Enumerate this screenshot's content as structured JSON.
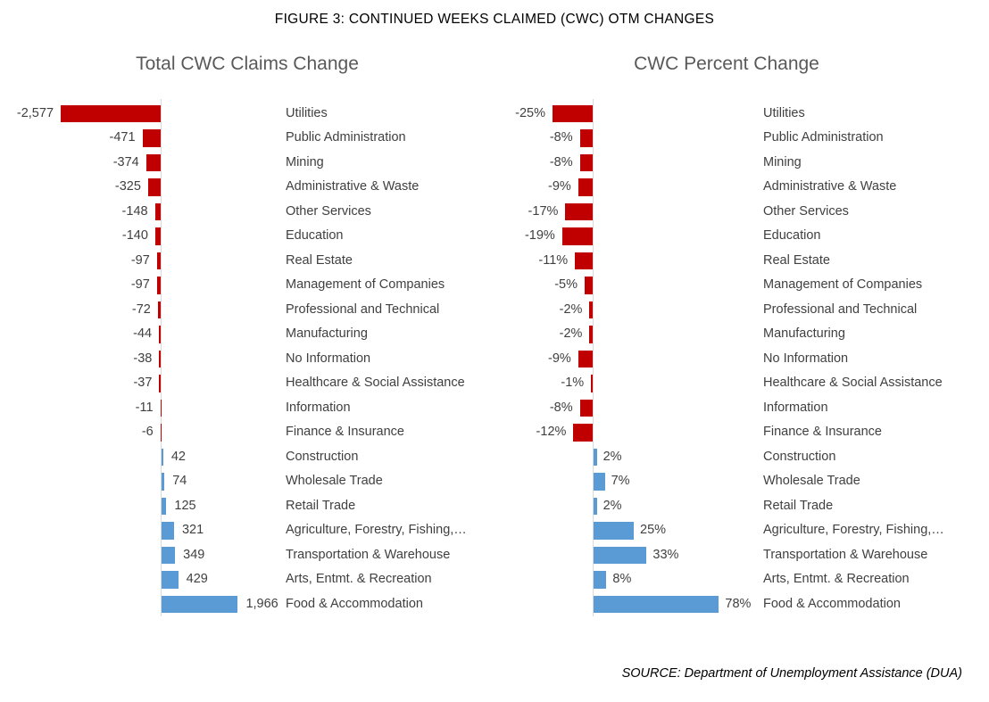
{
  "figure": {
    "title": "FIGURE 3: CONTINUED WEEKS CLAIMED (CWC) OTM CHANGES",
    "source": "SOURCE: Department of Unemployment Assistance (DUA)"
  },
  "colors": {
    "negative": "#c00000",
    "positive": "#5b9bd5",
    "axis": "#d9d9d9",
    "label": "#404040",
    "chart_title": "#595959"
  },
  "chart_data": [
    {
      "type": "bar",
      "orientation": "horizontal",
      "title": "Total CWC Claims Change",
      "legend": "none",
      "grid": false,
      "xlim": [
        -2577,
        1966
      ],
      "categories": [
        "Utilities",
        "Public Administration",
        "Mining",
        "Administrative & Waste",
        "Other Services",
        "Education",
        "Real Estate",
        "Management of Companies",
        "Professional and Technical",
        "Manufacturing",
        "No Information",
        "Healthcare & Social Assistance",
        "Information",
        "Finance & Insurance",
        "Construction",
        "Wholesale Trade",
        "Retail Trade",
        "Agriculture, Forestry, Fishing,…",
        "Transportation & Warehouse",
        "Arts, Entmt. & Recreation",
        "Food & Accommodation"
      ],
      "values": [
        -2577,
        -471,
        -374,
        -325,
        -148,
        -140,
        -97,
        -97,
        -72,
        -44,
        -38,
        -37,
        -11,
        -6,
        42,
        74,
        125,
        321,
        349,
        429,
        1966
      ],
      "value_labels": [
        "-2,577",
        "-471",
        "-374",
        "-325",
        "-148",
        "-140",
        "-97",
        "-97",
        "-72",
        "-44",
        "-38",
        "-37",
        "-11",
        "-6",
        "42",
        "74",
        "125",
        "321",
        "349",
        "429",
        "1,966"
      ]
    },
    {
      "type": "bar",
      "orientation": "horizontal",
      "title": "CWC Percent Change",
      "legend": "none",
      "grid": false,
      "xlim": [
        -25,
        78
      ],
      "categories": [
        "Utilities",
        "Public Administration",
        "Mining",
        "Administrative & Waste",
        "Other Services",
        "Education",
        "Real Estate",
        "Management of Companies",
        "Professional and Technical",
        "Manufacturing",
        "No Information",
        "Healthcare & Social Assistance",
        "Information",
        "Finance & Insurance",
        "Construction",
        "Wholesale Trade",
        "Retail Trade",
        "Agriculture, Forestry, Fishing,…",
        "Transportation & Warehouse",
        "Arts, Entmt. & Recreation",
        "Food & Accommodation"
      ],
      "values": [
        -25,
        -8,
        -8,
        -9,
        -17,
        -19,
        -11,
        -5,
        -2,
        -2,
        -9,
        -1,
        -8,
        -12,
        2,
        7,
        2,
        25,
        33,
        8,
        78
      ],
      "value_labels": [
        "-25%",
        "-8%",
        "-8%",
        "-9%",
        "-17%",
        "-19%",
        "-11%",
        "-5%",
        "-2%",
        "-2%",
        "-9%",
        "-1%",
        "-8%",
        "-12%",
        "2%",
        "7%",
        "2%",
        "25%",
        "33%",
        "8%",
        "78%"
      ]
    }
  ]
}
